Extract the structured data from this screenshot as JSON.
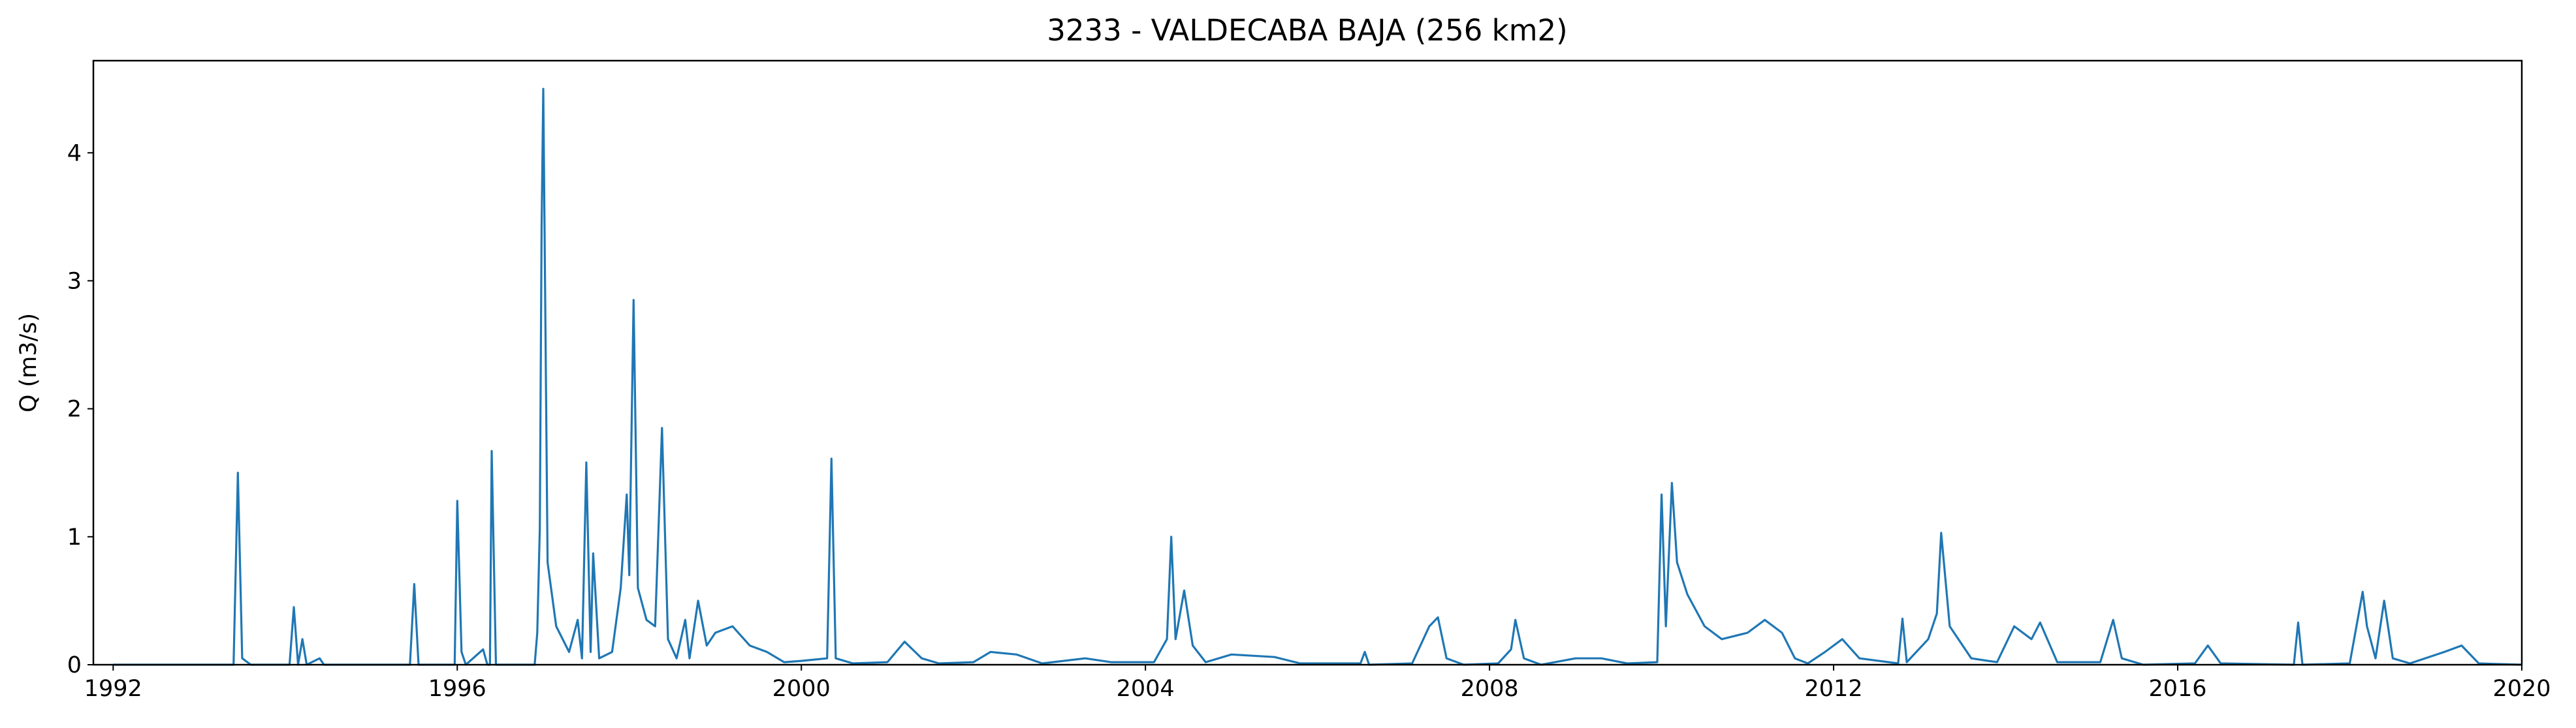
{
  "chart_data": {
    "type": "line",
    "title": "3233 - VALDECABA BAJA (256 km2)",
    "y_label": "Q (m3/s)",
    "xlim": [
      1991.77,
      2020
    ],
    "xticks": [
      1992,
      1996,
      2000,
      2004,
      2008,
      2012,
      2016,
      2020
    ],
    "ylim": [
      0,
      4.72
    ],
    "yticks": [
      0,
      1,
      2,
      3,
      4
    ],
    "grid": false,
    "series": [
      {
        "color": "#1f77b4",
        "x": [
          1992.0,
          1993.4,
          1993.45,
          1993.5,
          1993.6,
          1994.05,
          1994.1,
          1994.15,
          1994.2,
          1994.25,
          1994.4,
          1994.45,
          1995.45,
          1995.5,
          1995.55,
          1995.97,
          1996.0,
          1996.05,
          1996.1,
          1996.3,
          1996.35,
          1996.38,
          1996.4,
          1996.45,
          1996.9,
          1996.93,
          1996.96,
          1996.98,
          1997.0,
          1997.05,
          1997.15,
          1997.3,
          1997.4,
          1997.45,
          1997.5,
          1997.55,
          1997.58,
          1997.65,
          1997.8,
          1997.9,
          1997.97,
          1998.0,
          1998.05,
          1998.1,
          1998.2,
          1998.3,
          1998.38,
          1998.45,
          1998.55,
          1998.65,
          1998.7,
          1998.8,
          1998.9,
          1999.0,
          1999.2,
          1999.4,
          1999.6,
          1999.8,
          2000.0,
          2000.3,
          2000.35,
          2000.4,
          2000.6,
          2001.0,
          2001.2,
          2001.4,
          2001.6,
          2002.0,
          2002.2,
          2002.5,
          2002.8,
          2003.3,
          2003.6,
          2004.1,
          2004.25,
          2004.3,
          2004.35,
          2004.45,
          2004.55,
          2004.7,
          2005.0,
          2005.5,
          2005.8,
          2006.5,
          2006.55,
          2006.6,
          2007.1,
          2007.3,
          2007.4,
          2007.5,
          2007.7,
          2008.1,
          2008.25,
          2008.3,
          2008.4,
          2008.6,
          2009.0,
          2009.3,
          2009.6,
          2009.95,
          2010.0,
          2010.05,
          2010.12,
          2010.18,
          2010.3,
          2010.5,
          2010.7,
          2011.0,
          2011.2,
          2011.4,
          2011.55,
          2011.7,
          2011.9,
          2012.1,
          2012.3,
          2012.75,
          2012.8,
          2012.85,
          2013.1,
          2013.2,
          2013.25,
          2013.35,
          2013.6,
          2013.9,
          2014.1,
          2014.3,
          2014.4,
          2014.6,
          2015.1,
          2015.25,
          2015.35,
          2015.6,
          2016.2,
          2016.35,
          2016.5,
          2017.35,
          2017.4,
          2017.45,
          2018.0,
          2018.15,
          2018.2,
          2018.3,
          2018.4,
          2018.5,
          2018.7,
          2019.1,
          2019.3,
          2019.5,
          2020.0
        ],
        "values": [
          0,
          0,
          1.5,
          0.05,
          0,
          0,
          0.45,
          0,
          0.2,
          0,
          0.05,
          0,
          0,
          0.63,
          0,
          0,
          1.28,
          0.1,
          0,
          0.12,
          0,
          0,
          1.67,
          0,
          0,
          0.25,
          1.07,
          3.4,
          4.5,
          0.8,
          0.3,
          0.1,
          0.35,
          0.05,
          1.58,
          0.1,
          0.87,
          0.05,
          0.1,
          0.6,
          1.33,
          0.7,
          2.85,
          0.6,
          0.35,
          0.3,
          1.85,
          0.2,
          0.05,
          0.35,
          0.05,
          0.5,
          0.15,
          0.25,
          0.3,
          0.15,
          0.1,
          0.02,
          0.03,
          0.05,
          1.61,
          0.05,
          0.01,
          0.02,
          0.18,
          0.05,
          0.01,
          0.02,
          0.1,
          0.08,
          0.01,
          0.05,
          0.02,
          0.02,
          0.2,
          1.0,
          0.2,
          0.58,
          0.15,
          0.02,
          0.08,
          0.06,
          0.01,
          0.01,
          0.1,
          0,
          0.01,
          0.3,
          0.37,
          0.05,
          0,
          0.01,
          0.12,
          0.35,
          0.05,
          0,
          0.05,
          0.05,
          0.01,
          0.02,
          1.33,
          0.3,
          1.42,
          0.8,
          0.55,
          0.3,
          0.2,
          0.25,
          0.35,
          0.25,
          0.05,
          0.01,
          0.1,
          0.2,
          0.05,
          0.01,
          0.36,
          0.02,
          0.2,
          0.4,
          1.03,
          0.3,
          0.05,
          0.02,
          0.3,
          0.2,
          0.33,
          0.02,
          0.02,
          0.35,
          0.05,
          0,
          0.01,
          0.15,
          0.01,
          0,
          0.33,
          0,
          0.01,
          0.57,
          0.3,
          0.05,
          0.5,
          0.05,
          0.01,
          0.1,
          0.15,
          0.01,
          0
        ]
      }
    ]
  }
}
